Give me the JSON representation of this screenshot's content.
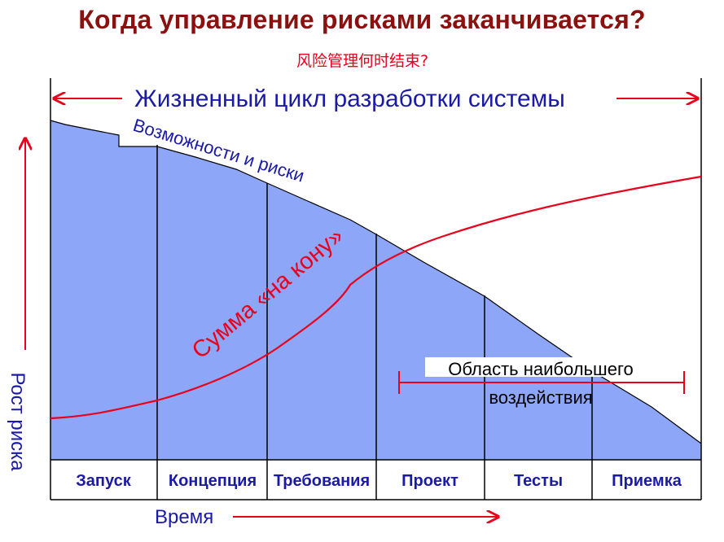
{
  "title": "Когда управление рисками заканчивается?",
  "subtitle": "风险管理何时结束?",
  "lifecycle_label": "Жизненный цикл разработки системы",
  "opportunities_label": "Возможности и риски",
  "stake_label": "Сумма «на кону»",
  "impact_label_line1": "Область наибольшего",
  "impact_label_line2": "воздействия",
  "y_axis_label": "Рост риска",
  "x_axis_label": "Время",
  "phases": [
    "Запуск",
    "Концепция",
    "Требования",
    "Проект",
    "Тесты",
    "Приемка"
  ],
  "colors": {
    "title": "#8b1111",
    "accent_red": "#e8001c",
    "text_blue": "#1a1aa6",
    "area_fill": "#8ea6f7"
  }
}
